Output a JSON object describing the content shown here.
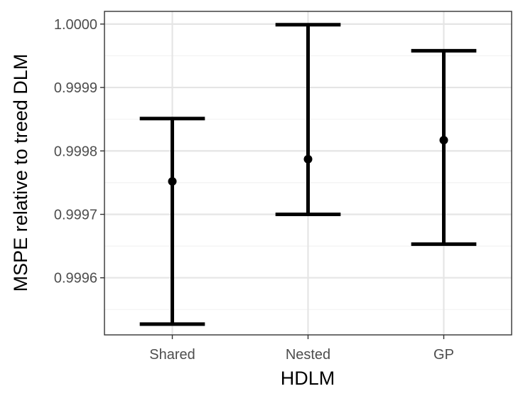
{
  "chart_data": {
    "type": "errorbar",
    "categories": [
      "Shared",
      "Nested",
      "GP"
    ],
    "estimate": [
      0.999752,
      0.999787,
      0.999817
    ],
    "lower": [
      0.999527,
      0.9997,
      0.999653
    ],
    "upper": [
      0.999851,
      0.999999,
      0.999958
    ],
    "xlabel": "HDLM",
    "ylabel": "MSPE relative to treed DLM",
    "ylim": [
      0.99951,
      1.00002
    ],
    "y_ticks": [
      0.9996,
      0.9997,
      0.9998,
      0.9999,
      1.0
    ],
    "y_tick_labels": [
      "0.9996",
      "0.9997",
      "0.9998",
      "0.9999",
      "1.0000"
    ],
    "grid": true,
    "colors": {
      "marks": "#000000",
      "grid": "#e5e5e5",
      "border": "#333333"
    }
  }
}
